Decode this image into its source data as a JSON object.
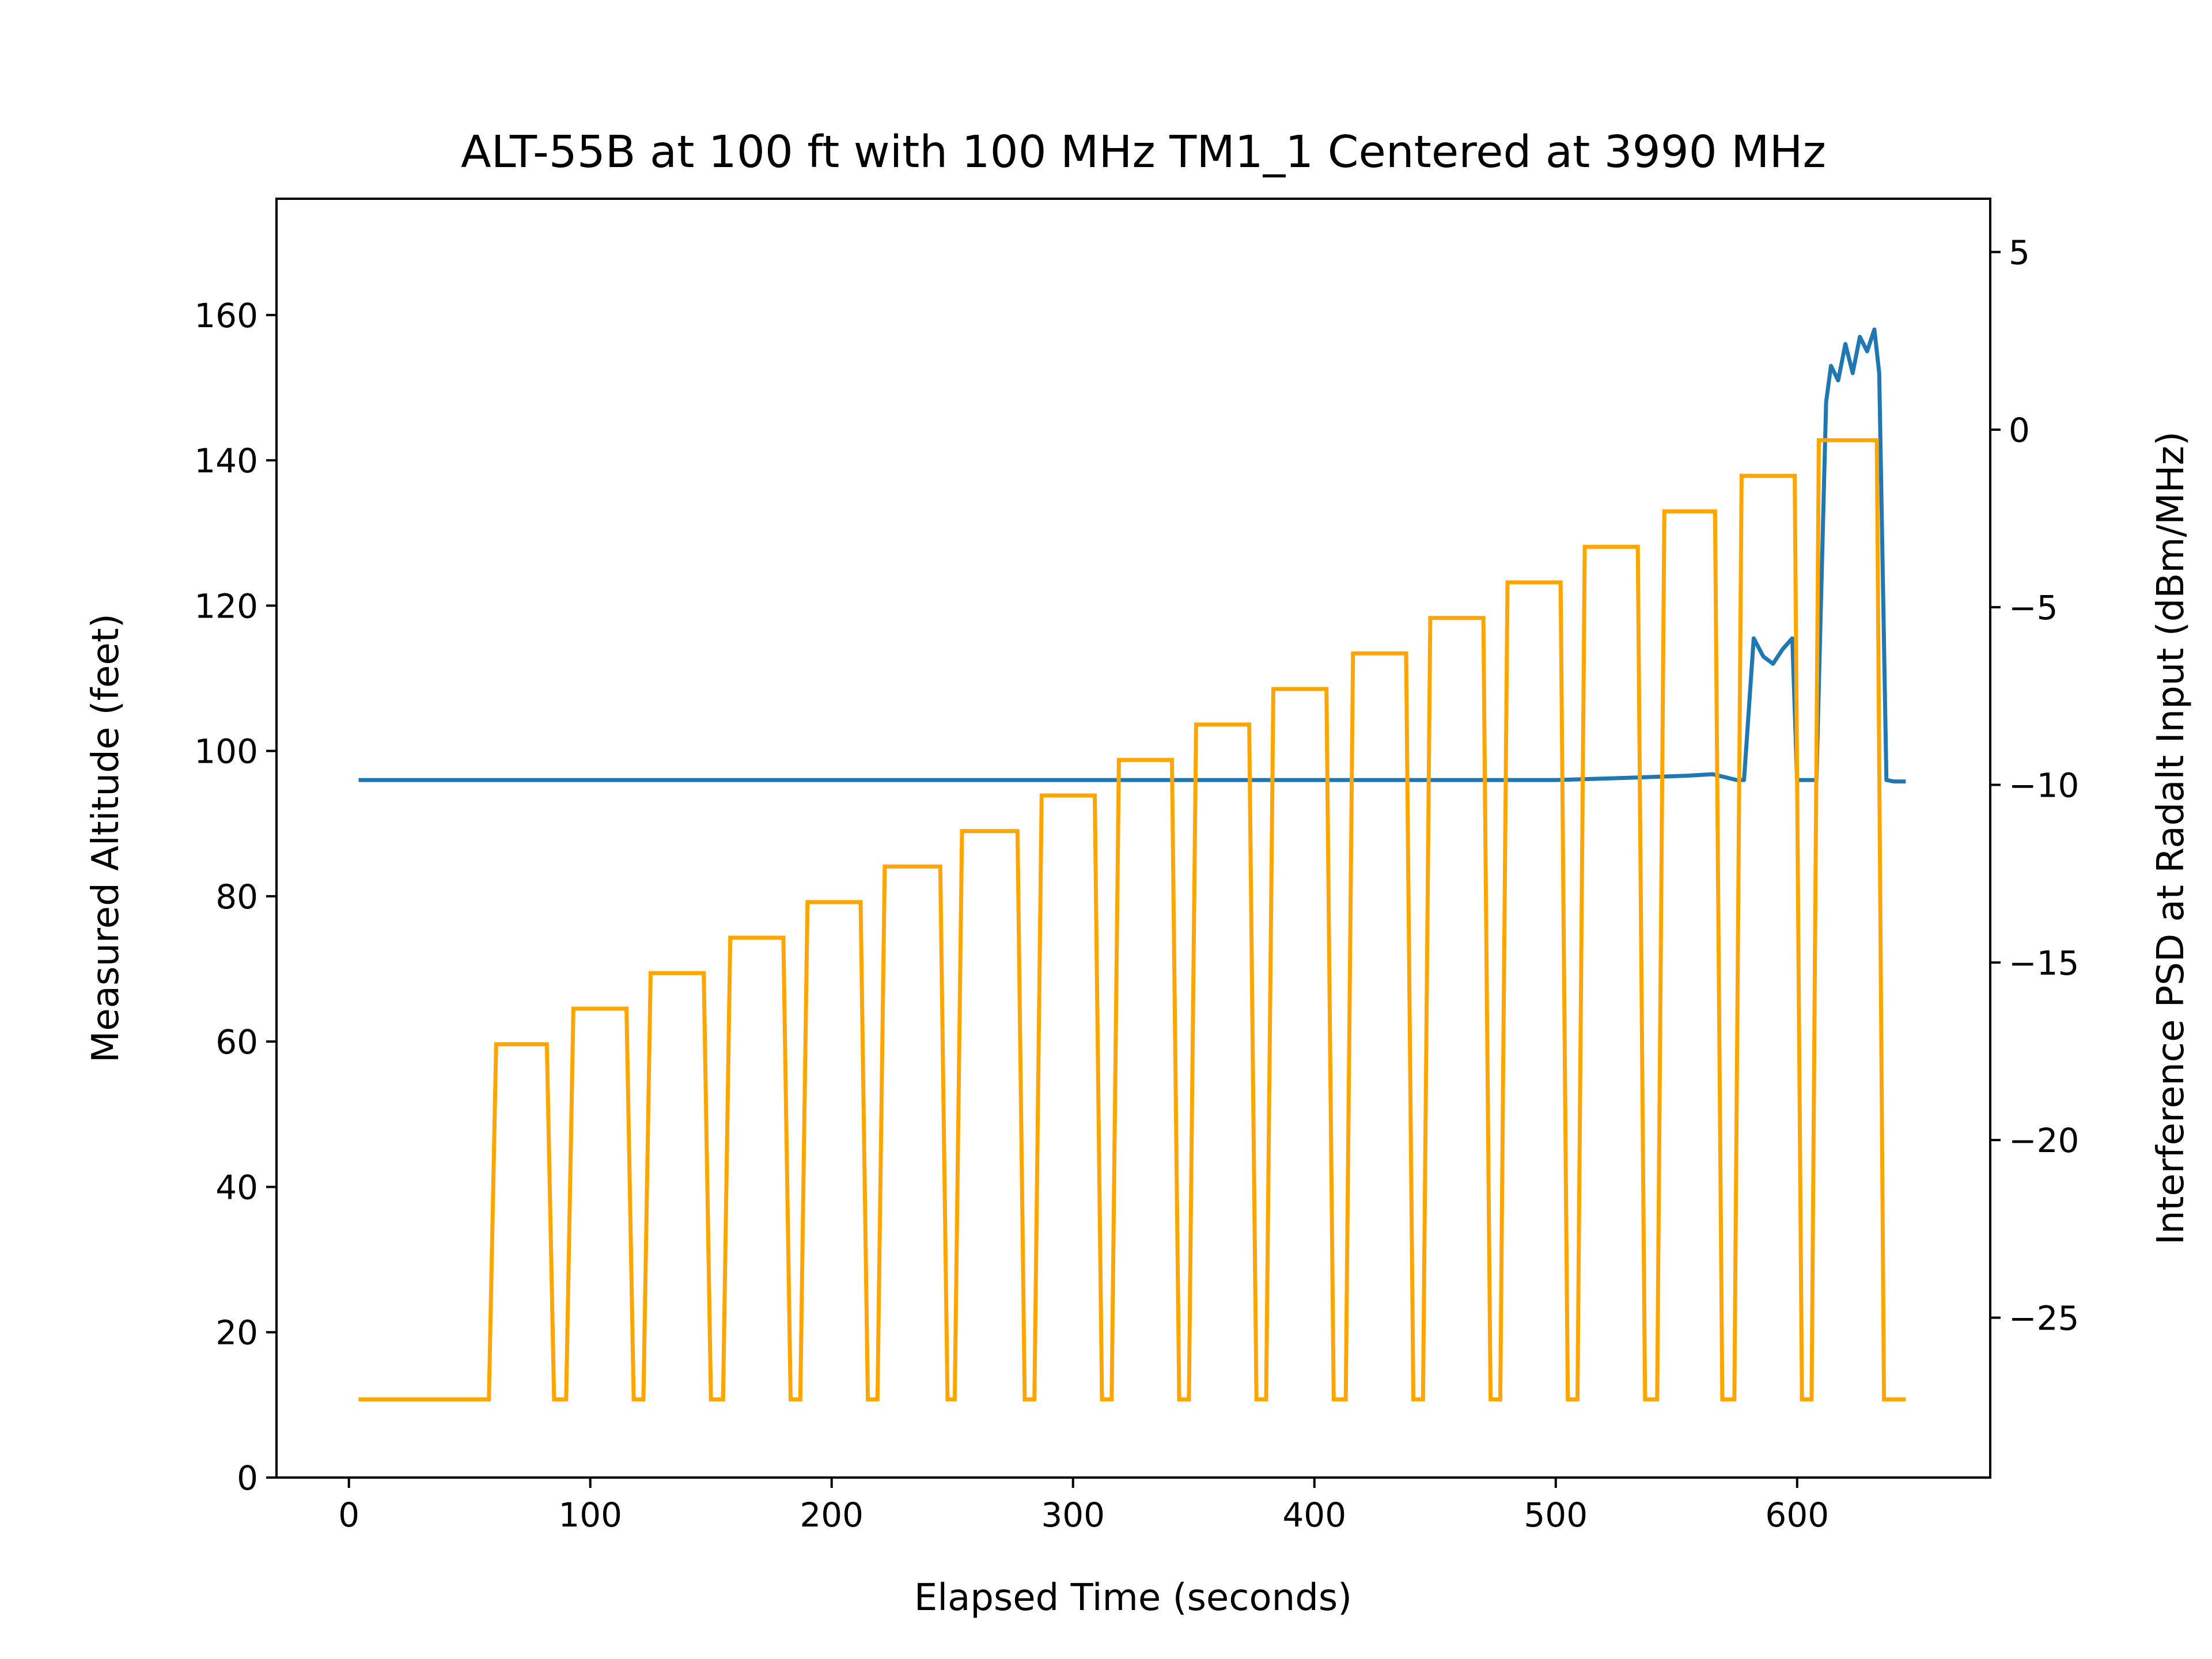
{
  "chart_data": {
    "type": "line",
    "title": "ALT-55B at 100 ft with 100 MHz TM1_1 Centered at 3990 MHz",
    "xlabel": "Elapsed Time (seconds)",
    "ylabel": "Measured Altitude (feet)",
    "y2label": "Interference PSD at Radalt Input (dBm/MHz)",
    "xlim": [
      -30,
      680
    ],
    "ylim": [
      0,
      176
    ],
    "y2lim": [
      -29.5,
      6.5
    ],
    "x_ticks": [
      0,
      100,
      200,
      300,
      400,
      500,
      600
    ],
    "y_ticks": [
      0,
      20,
      40,
      60,
      80,
      100,
      120,
      140,
      160
    ],
    "y2_ticks": [
      5,
      0,
      -5,
      -10,
      -15,
      -20,
      -25
    ],
    "y2_tick_labels": [
      "5",
      "0",
      "−5",
      "−10",
      "−15",
      "−20",
      "−25"
    ],
    "x_tick_labels": [
      "0",
      "100",
      "200",
      "300",
      "400",
      "500",
      "600"
    ],
    "y_tick_labels": [
      "0",
      "20",
      "40",
      "60",
      "80",
      "100",
      "120",
      "140",
      "160"
    ],
    "grid": false,
    "series": [
      {
        "axis": "left",
        "color": "#1f77b4",
        "description_note": "",
        "x": [
          4,
          50,
          100,
          150,
          200,
          250,
          300,
          350,
          400,
          450,
          500,
          530,
          555,
          565,
          575,
          578,
          582,
          586,
          590,
          594,
          598,
          600,
          603,
          608,
          612,
          614,
          617,
          620,
          623,
          626,
          629,
          632,
          634,
          637,
          640,
          645
        ],
        "y": [
          96,
          96,
          96,
          96,
          96,
          96,
          96,
          96,
          96,
          96,
          96,
          96.3,
          96.6,
          96.8,
          96,
          96,
          115.5,
          113,
          112,
          114,
          115.5,
          96,
          96,
          96,
          148,
          153,
          151,
          156,
          152,
          157,
          155,
          158,
          152,
          96,
          95.8,
          95.8
        ]
      },
      {
        "axis": "right",
        "color": "#ffa500",
        "start_time": 4,
        "end_time": 645,
        "baseline": -27.3,
        "pulses": [
          {
            "start": 61,
            "end": 82,
            "level": -17.3
          },
          {
            "start": 93,
            "end": 115,
            "level": -16.3
          },
          {
            "start": 125,
            "end": 147,
            "level": -15.3
          },
          {
            "start": 158,
            "end": 180,
            "level": -14.3
          },
          {
            "start": 190,
            "end": 212,
            "level": -13.3
          },
          {
            "start": 222,
            "end": 245,
            "level": -12.3
          },
          {
            "start": 254,
            "end": 277,
            "level": -11.3
          },
          {
            "start": 287,
            "end": 309,
            "level": -10.3
          },
          {
            "start": 319,
            "end": 341,
            "level": -9.3
          },
          {
            "start": 351,
            "end": 373,
            "level": -8.3
          },
          {
            "start": 383,
            "end": 405,
            "level": -7.3
          },
          {
            "start": 416,
            "end": 438,
            "level": -6.3
          },
          {
            "start": 448,
            "end": 470,
            "level": -5.3
          },
          {
            "start": 480,
            "end": 502,
            "level": -4.3
          },
          {
            "start": 512,
            "end": 534,
            "level": -3.3
          },
          {
            "start": 545,
            "end": 566,
            "level": -2.3
          },
          {
            "start": 577,
            "end": 599,
            "level": -1.3
          },
          {
            "start": 609,
            "end": 633,
            "level": -0.3
          }
        ]
      }
    ]
  }
}
